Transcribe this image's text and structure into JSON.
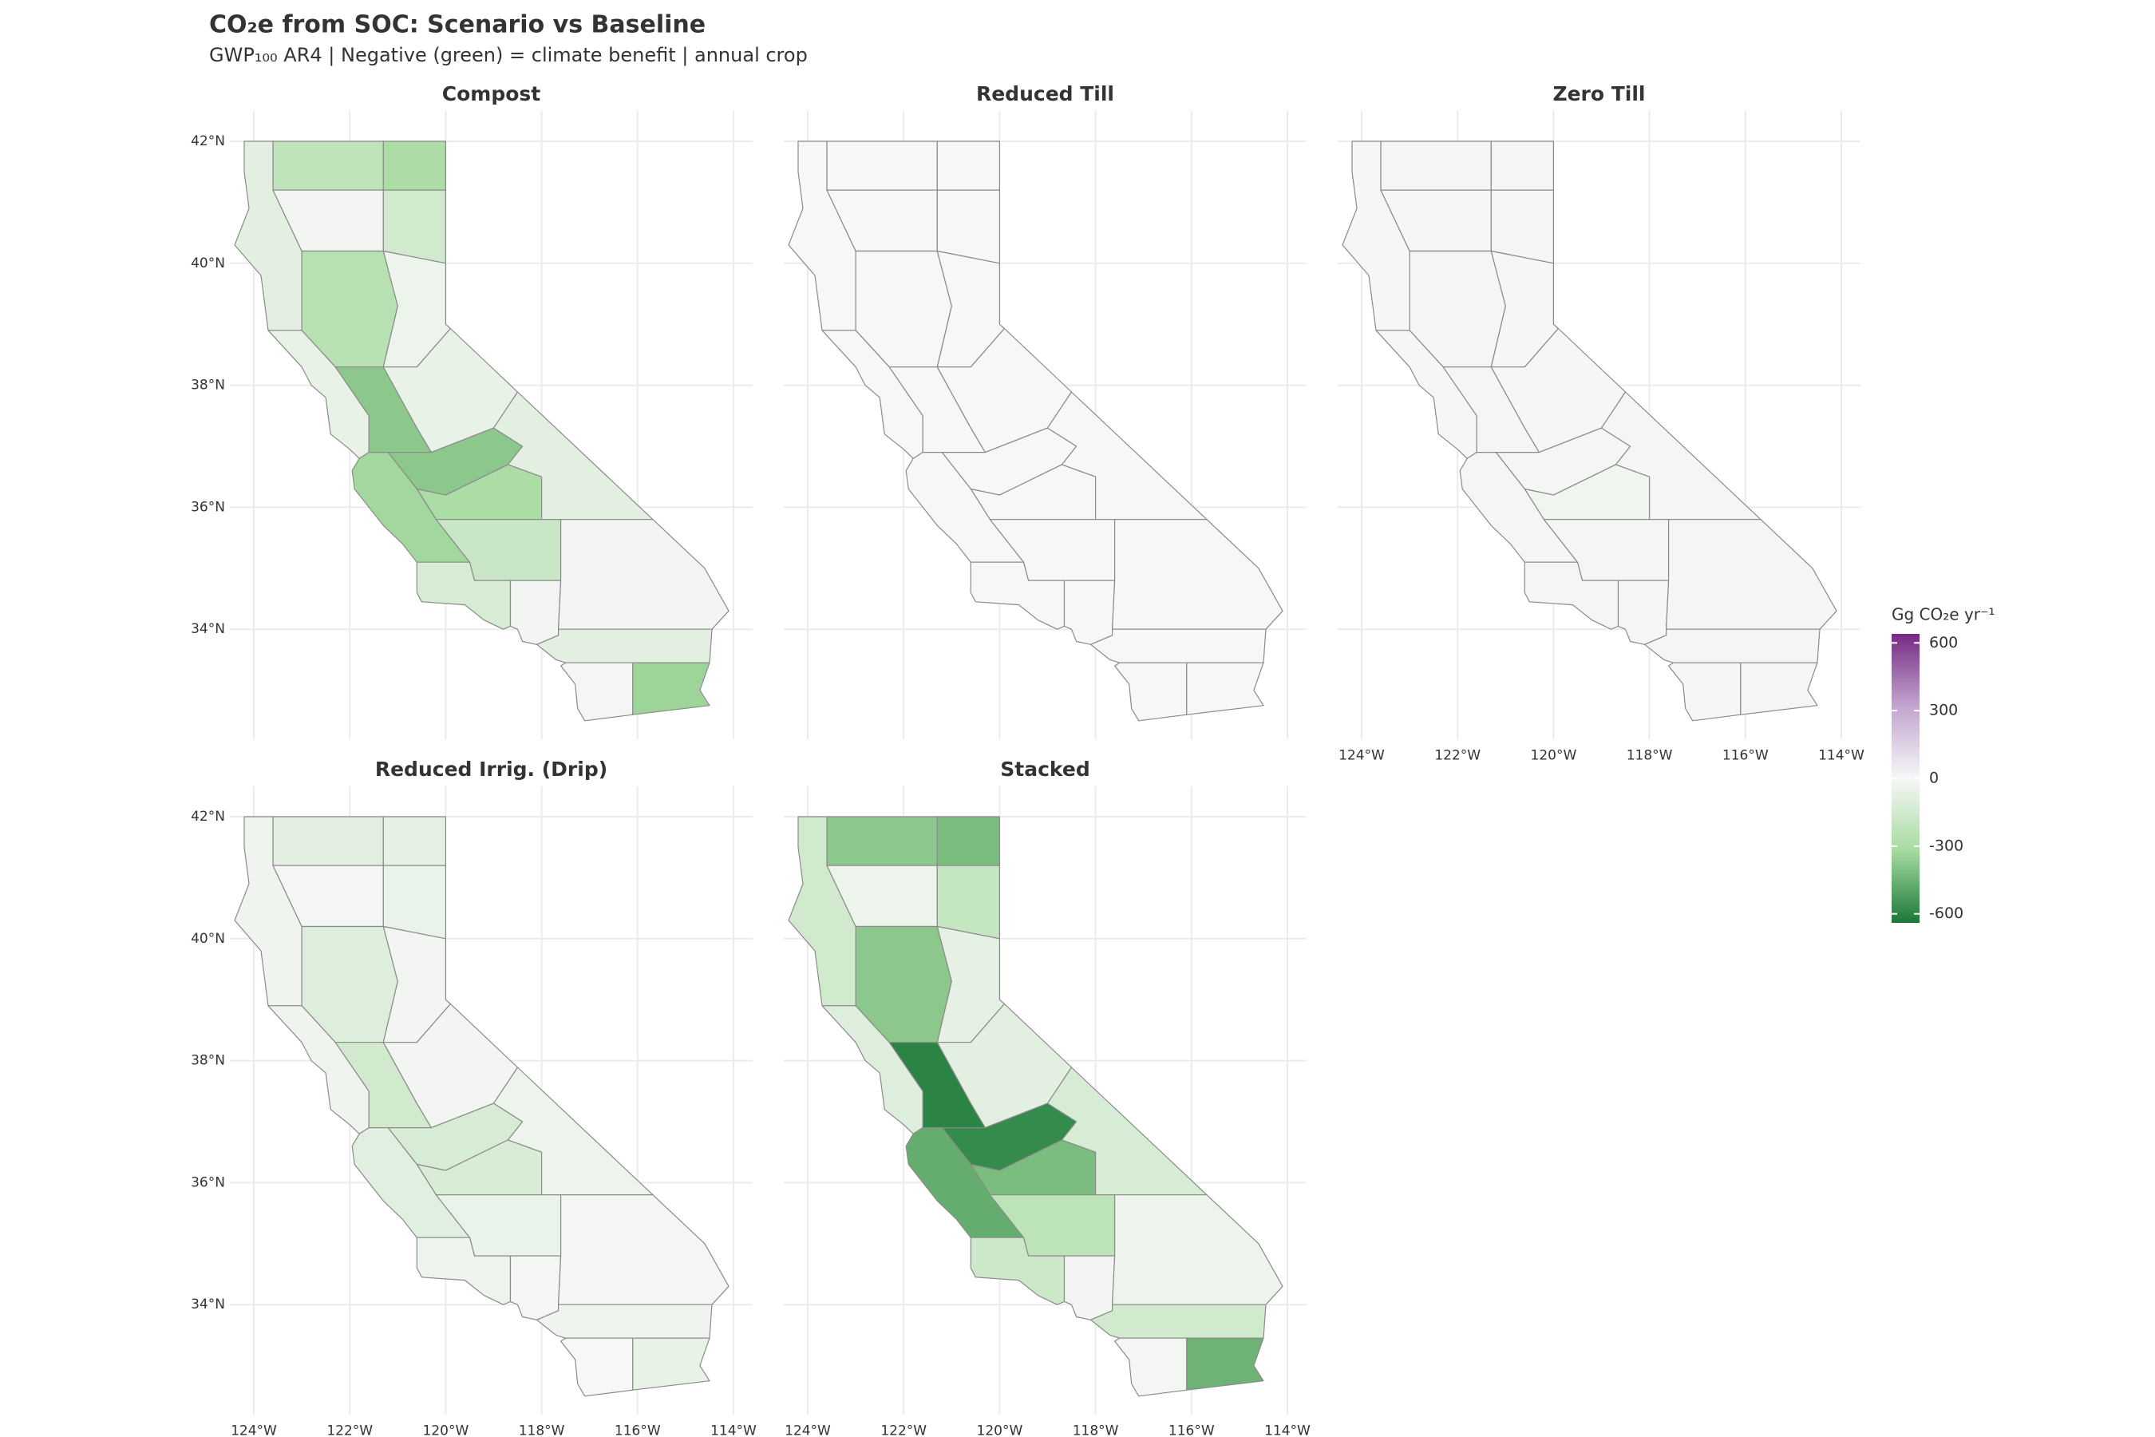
{
  "title": "CO₂e from SOC: Scenario vs Baseline",
  "subtitle": "GWP₁₀₀ AR4 | Negative (green) = climate benefit | annual crop",
  "xlim": [
    -124.5,
    -113.6
  ],
  "ylim": [
    32.2,
    42.5
  ],
  "xticks": [
    {
      "value": -124,
      "label": "124°W"
    },
    {
      "value": -122,
      "label": "122°W"
    },
    {
      "value": -120,
      "label": "120°W"
    },
    {
      "value": -118,
      "label": "118°W"
    },
    {
      "value": -116,
      "label": "116°W"
    },
    {
      "value": -114,
      "label": "114°W"
    }
  ],
  "yticks": [
    {
      "value": 34,
      "label": "34°N"
    },
    {
      "value": 36,
      "label": "36°N"
    },
    {
      "value": 38,
      "label": "38°N"
    },
    {
      "value": 40,
      "label": "40°N"
    },
    {
      "value": 42,
      "label": "42°N"
    }
  ],
  "grid": true,
  "colorbar": {
    "title": "Gg CO₂e yr⁻¹",
    "lim": [
      -640,
      640
    ],
    "ticks": [
      600,
      300,
      0,
      -300,
      -600
    ],
    "colors": [
      "#1b7837",
      "#a6dba0",
      "#f7f7f7",
      "#c2a5cf",
      "#762a83"
    ]
  },
  "chart_data": [
    {
      "type": "choropleth",
      "title": "Compost",
      "values": [
        -220,
        -300,
        -80,
        -20,
        -150,
        -250,
        -40,
        -60,
        -380,
        -60,
        -380,
        -300,
        -80,
        -330,
        -180,
        -130,
        -20,
        -20,
        -80,
        -10,
        -340
      ]
    },
    {
      "type": "choropleth",
      "title": "Reduced Till",
      "values": [
        -5,
        -5,
        -5,
        -5,
        -5,
        -5,
        -5,
        -5,
        -5,
        -5,
        -5,
        -5,
        -5,
        -5,
        -5,
        -5,
        -5,
        -5,
        -5,
        -5,
        -5
      ]
    },
    {
      "type": "choropleth",
      "title": "Zero Till",
      "values": [
        -10,
        -10,
        -8,
        -8,
        -10,
        -10,
        -8,
        -8,
        -15,
        -8,
        -15,
        -25,
        -10,
        -12,
        -12,
        -10,
        -8,
        -10,
        -10,
        -8,
        -12
      ]
    },
    {
      "type": "choropleth",
      "title": "Reduced Irrig. (Drip)",
      "values": [
        -80,
        -70,
        -30,
        -10,
        -50,
        -100,
        -20,
        -30,
        -150,
        -20,
        -130,
        -120,
        -40,
        -90,
        -50,
        -40,
        -10,
        -10,
        -30,
        -5,
        -60
      ]
    },
    {
      "type": "choropleth",
      "title": "Stacked",
      "values": [
        -380,
        -420,
        -150,
        -40,
        -200,
        -380,
        -70,
        -100,
        -600,
        -80,
        -580,
        -420,
        -130,
        -470,
        -230,
        -170,
        -20,
        -40,
        -150,
        -15,
        -450
      ]
    }
  ]
}
